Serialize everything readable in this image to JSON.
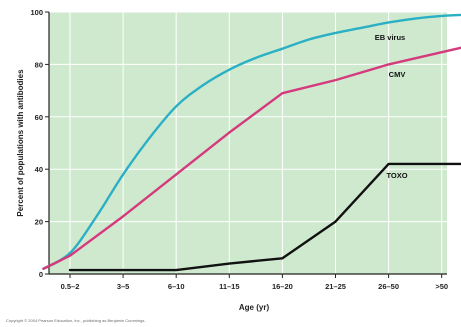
{
  "chart_data": {
    "type": "line",
    "title": "",
    "xlabel": "Age (yr)",
    "ylabel": "Percent of populations with antibodies",
    "categories": [
      "0.5–2",
      "3–5",
      "6–10",
      "11–15",
      "16–20",
      "21–25",
      "26–50",
      ">50"
    ],
    "ylim": [
      0,
      100
    ],
    "yticks": [
      0,
      20,
      40,
      60,
      80,
      100
    ],
    "grid": true,
    "legend": "inline labels at right",
    "series": [
      {
        "name": "EB virus",
        "color": "#2ab0c4",
        "points": [
          [
            -0.5,
            2
          ],
          [
            0,
            8
          ],
          [
            0.5,
            22
          ],
          [
            1,
            38
          ],
          [
            1.5,
            52
          ],
          [
            2,
            64
          ],
          [
            2.5,
            72
          ],
          [
            3,
            78
          ],
          [
            3.5,
            82.5
          ],
          [
            4,
            86
          ],
          [
            4.5,
            89.5
          ],
          [
            5,
            92
          ],
          [
            5.5,
            94
          ],
          [
            6,
            96
          ],
          [
            6.5,
            97.5
          ],
          [
            7,
            98.5
          ],
          [
            7.5,
            99
          ]
        ]
      },
      {
        "name": "CMV",
        "color": "#d43a7c",
        "points": [
          [
            -0.5,
            2
          ],
          [
            0,
            7
          ],
          [
            1,
            22
          ],
          [
            2,
            38
          ],
          [
            3,
            54
          ],
          [
            4,
            69
          ],
          [
            5,
            74
          ],
          [
            6,
            80
          ],
          [
            7.5,
            87
          ]
        ]
      },
      {
        "name": "TOXO",
        "color": "#111111",
        "points": [
          [
            0,
            1.5
          ],
          [
            2,
            1.5
          ],
          [
            3,
            4
          ],
          [
            4,
            6
          ],
          [
            5,
            20
          ],
          [
            6,
            42
          ],
          [
            7.5,
            42
          ]
        ]
      }
    ]
  },
  "copyright": "Copyright © 2004 Pearson Education, Inc., publishing as Benjamin Cummings."
}
